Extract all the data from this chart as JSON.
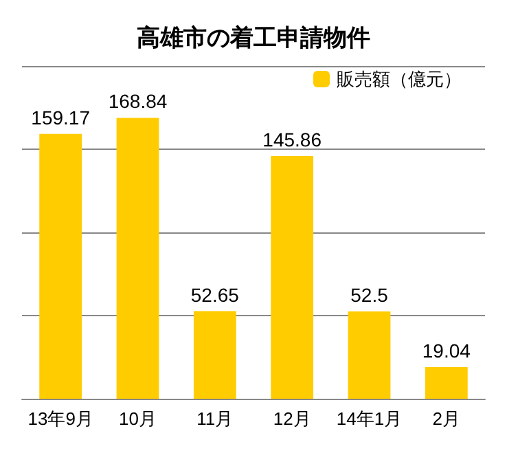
{
  "chart_data": {
    "type": "bar",
    "title": "高雄市の着工申請物件",
    "categories": [
      "13年9月",
      "10月",
      "11月",
      "12月",
      "14年1月",
      "2月"
    ],
    "series": [
      {
        "name": "販売額（億元）",
        "color": "#ffcc00",
        "values": [
          159.17,
          168.84,
          52.65,
          145.86,
          52.5,
          19.04
        ]
      }
    ],
    "data_labels": true,
    "grid": "y",
    "legend": "top right"
  }
}
